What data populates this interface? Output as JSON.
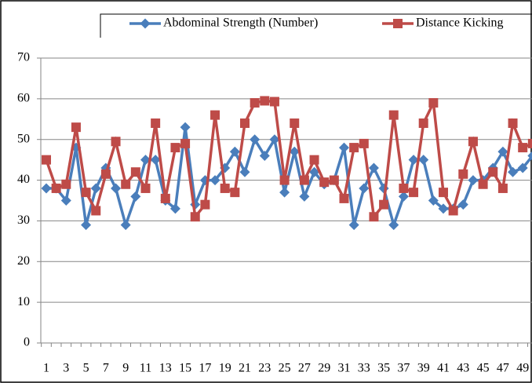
{
  "chart_data": {
    "type": "line",
    "categories": [
      "1",
      null,
      "3",
      null,
      "5",
      null,
      "7",
      null,
      "9",
      null,
      "11",
      null,
      "13",
      null,
      "15",
      null,
      "17",
      null,
      "19",
      null,
      "21",
      null,
      "23",
      null,
      "25",
      null,
      "27",
      null,
      "29",
      null,
      "31",
      null,
      "33",
      null,
      "35",
      null,
      "37",
      null,
      "39",
      null,
      "41",
      null,
      "43",
      null,
      "45",
      null,
      "47",
      null,
      "49",
      null
    ],
    "series": [
      {
        "name": "Abdominal Strength (Number)",
        "color": "#4a7ebb",
        "marker": "diamond",
        "values": [
          38,
          38,
          35,
          48,
          29,
          38,
          43,
          38,
          29,
          36,
          45,
          45,
          35,
          33,
          53,
          34,
          40,
          40,
          43,
          47,
          42,
          50,
          46,
          50,
          37,
          47,
          36,
          42,
          39,
          40,
          48,
          29,
          38,
          43,
          38,
          29,
          36,
          45,
          45,
          35,
          33,
          33,
          34,
          40,
          40,
          43,
          47,
          42,
          43,
          46
        ]
      },
      {
        "name": "Distance Kicking",
        "color": "#be4b48",
        "marker": "square",
        "values": [
          45,
          38,
          39,
          53,
          37,
          32.5,
          41.5,
          49.5,
          39,
          42,
          38,
          54,
          35.5,
          48,
          49,
          31,
          34,
          56,
          38,
          37,
          54,
          59,
          59.5,
          59.3,
          40,
          54,
          40,
          45,
          39.5,
          40,
          35.5,
          48,
          49,
          31,
          34,
          56,
          38,
          37,
          54,
          59,
          37,
          32.5,
          41.5,
          49.5,
          39,
          42,
          38,
          54,
          48,
          49
        ]
      }
    ],
    "ylim": [
      0,
      70
    ],
    "yticks": [
      0,
      10,
      20,
      30,
      40,
      50,
      60,
      70
    ],
    "grid": true,
    "legend": "top"
  }
}
